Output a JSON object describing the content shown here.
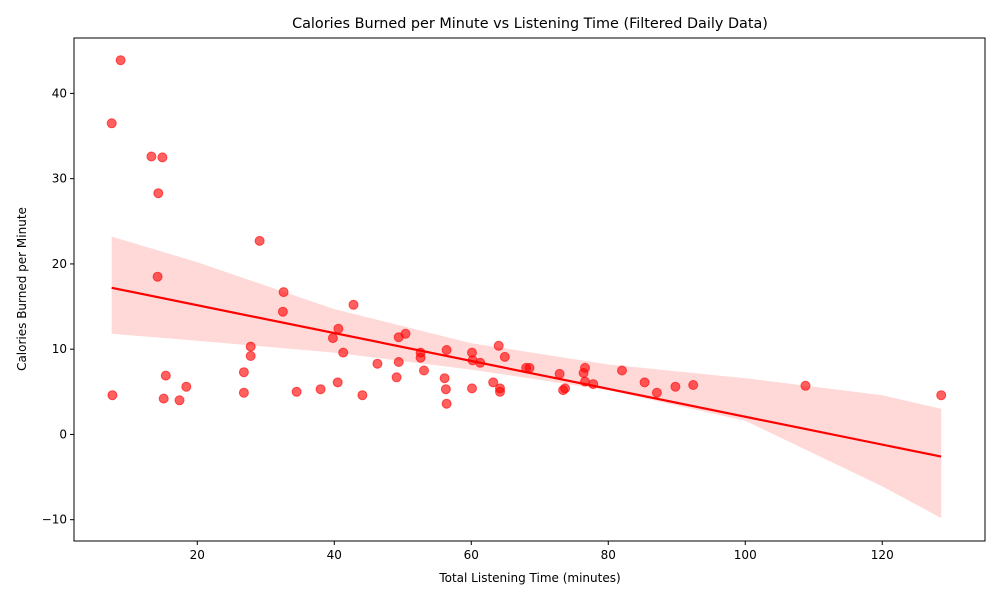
{
  "chart_data": {
    "type": "scatter",
    "title": "Calories Burned per Minute vs Listening Time (Filtered Daily Data)",
    "xlabel": "Total Listening Time (minutes)",
    "ylabel": "Calories Burned per Minute",
    "xlim": [
      2,
      135
    ],
    "ylim": [
      -12.5,
      46.5
    ],
    "xticks": [
      20,
      40,
      60,
      80,
      100,
      120
    ],
    "yticks": [
      -10,
      0,
      10,
      20,
      30,
      40
    ],
    "grid": false,
    "colors": {
      "points": "#ff0000",
      "line": "#ff0000",
      "band": "#ffd6d6"
    },
    "series": [
      {
        "points": [
          [
            7.5,
            36.5
          ],
          [
            8.8,
            43.9
          ],
          [
            13.3,
            32.6
          ],
          [
            14.9,
            32.5
          ],
          [
            14.3,
            28.3
          ],
          [
            14.2,
            18.5
          ],
          [
            7.6,
            4.6
          ],
          [
            15.4,
            6.9
          ],
          [
            15.1,
            4.2
          ],
          [
            17.4,
            4.0
          ],
          [
            18.4,
            5.6
          ],
          [
            29.1,
            22.7
          ],
          [
            32.6,
            16.7
          ],
          [
            32.5,
            14.4
          ],
          [
            27.8,
            10.3
          ],
          [
            27.8,
            9.2
          ],
          [
            26.8,
            7.3
          ],
          [
            26.8,
            4.9
          ],
          [
            34.5,
            5.0
          ],
          [
            38.0,
            5.3
          ],
          [
            40.5,
            6.1
          ],
          [
            44.1,
            4.6
          ],
          [
            42.8,
            15.2
          ],
          [
            40.6,
            12.4
          ],
          [
            39.8,
            11.3
          ],
          [
            41.3,
            9.6
          ],
          [
            46.3,
            8.3
          ],
          [
            50.4,
            11.8
          ],
          [
            49.4,
            11.4
          ],
          [
            52.6,
            9.6
          ],
          [
            52.6,
            9.0
          ],
          [
            49.4,
            8.5
          ],
          [
            53.1,
            7.5
          ],
          [
            49.1,
            6.7
          ],
          [
            56.4,
            9.9
          ],
          [
            56.1,
            6.6
          ],
          [
            56.3,
            5.3
          ],
          [
            56.4,
            3.6
          ],
          [
            60.1,
            9.6
          ],
          [
            60.2,
            8.7
          ],
          [
            61.3,
            8.4
          ],
          [
            60.1,
            5.4
          ],
          [
            64.0,
            10.4
          ],
          [
            64.9,
            9.1
          ],
          [
            68.0,
            7.8
          ],
          [
            68.5,
            7.8
          ],
          [
            63.2,
            6.1
          ],
          [
            64.2,
            5.4
          ],
          [
            64.2,
            5.0
          ],
          [
            72.9,
            7.1
          ],
          [
            73.7,
            5.4
          ],
          [
            73.4,
            5.2
          ],
          [
            76.6,
            7.8
          ],
          [
            76.4,
            7.2
          ],
          [
            76.6,
            6.2
          ],
          [
            77.8,
            5.9
          ],
          [
            82.0,
            7.5
          ],
          [
            85.3,
            6.1
          ],
          [
            87.1,
            4.9
          ],
          [
            89.8,
            5.6
          ],
          [
            92.4,
            5.8
          ],
          [
            108.8,
            5.7
          ],
          [
            128.6,
            4.6
          ]
        ]
      }
    ],
    "regression": {
      "x": [
        7.5,
        128.6
      ],
      "y": [
        17.2,
        -2.6
      ],
      "ci_band": {
        "x": [
          7.5,
          20,
          40,
          60,
          80,
          100,
          120,
          128.6
        ],
        "lower": [
          11.8,
          11.0,
          9.6,
          7.6,
          5.2,
          1.6,
          -6.1,
          -9.8
        ],
        "upper": [
          23.2,
          20.2,
          14.7,
          10.7,
          8.2,
          6.6,
          4.6,
          3.0
        ]
      }
    }
  }
}
